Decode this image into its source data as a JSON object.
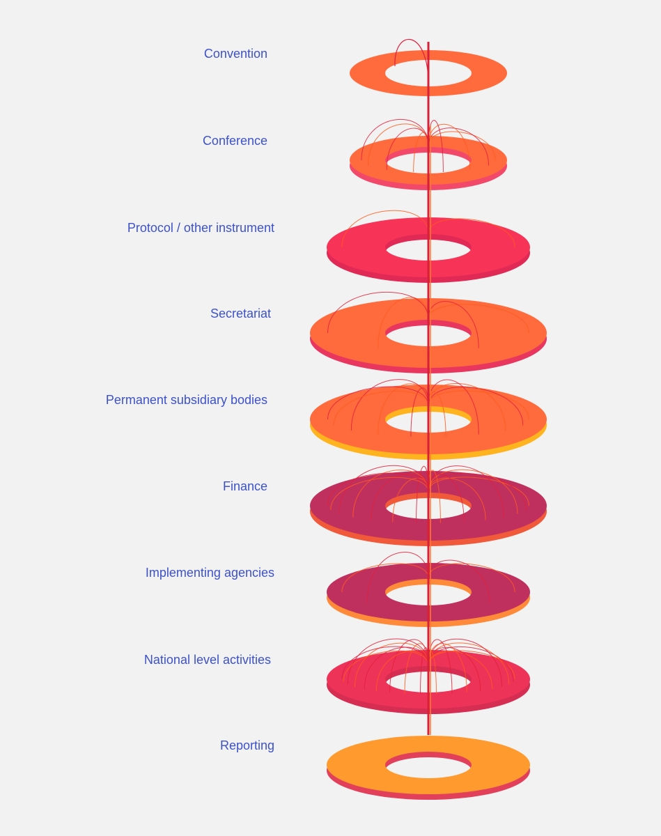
{
  "layers": [
    {
      "label": "Convention"
    },
    {
      "label": "Conference"
    },
    {
      "label": "Protocol / other instrument"
    },
    {
      "label": "Secretariat"
    },
    {
      "label": "Permanent subsidiary bodies"
    },
    {
      "label": "Finance"
    },
    {
      "label": "Implementing agencies"
    },
    {
      "label": "National level activities"
    },
    {
      "label": "Reporting"
    }
  ]
}
